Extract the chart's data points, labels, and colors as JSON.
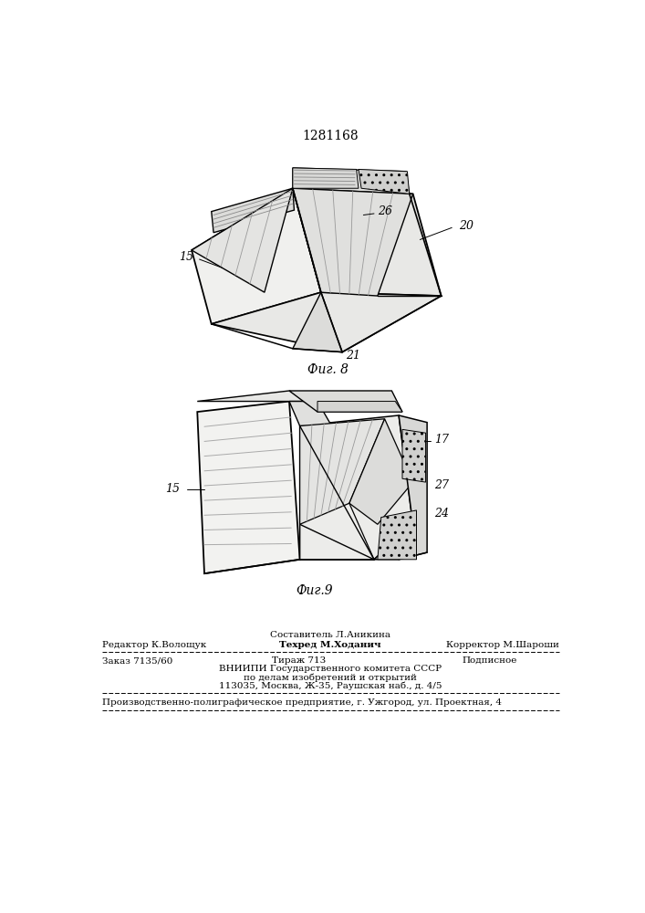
{
  "patent_number": "1281168",
  "fig8_label": "Фиг. 8",
  "fig9_label": "Фиг.9",
  "bg_color": "#ffffff",
  "footer_line1_left": "Редактор К.Волощук",
  "footer_line1_center": "Техред М.Ходанич",
  "footer_line1_center_top": "Составитель Л.Аникина",
  "footer_line1_right": "Корректор М.Шароши",
  "footer_line2_left": "Заказ 7135/60",
  "footer_line2_center": "Тираж 713",
  "footer_line2_right": "Подписное",
  "footer_line3": "ВНИИПИ Государственного комитета СССР",
  "footer_line4": "по делам изобретений и открытий",
  "footer_line5": "113035, Москва, Ж-35, Раушская наб., д. 4/5",
  "footer_line6": "Производственно-полиграфическое предприятие, г. Ужгород, ул. Проектная, 4"
}
